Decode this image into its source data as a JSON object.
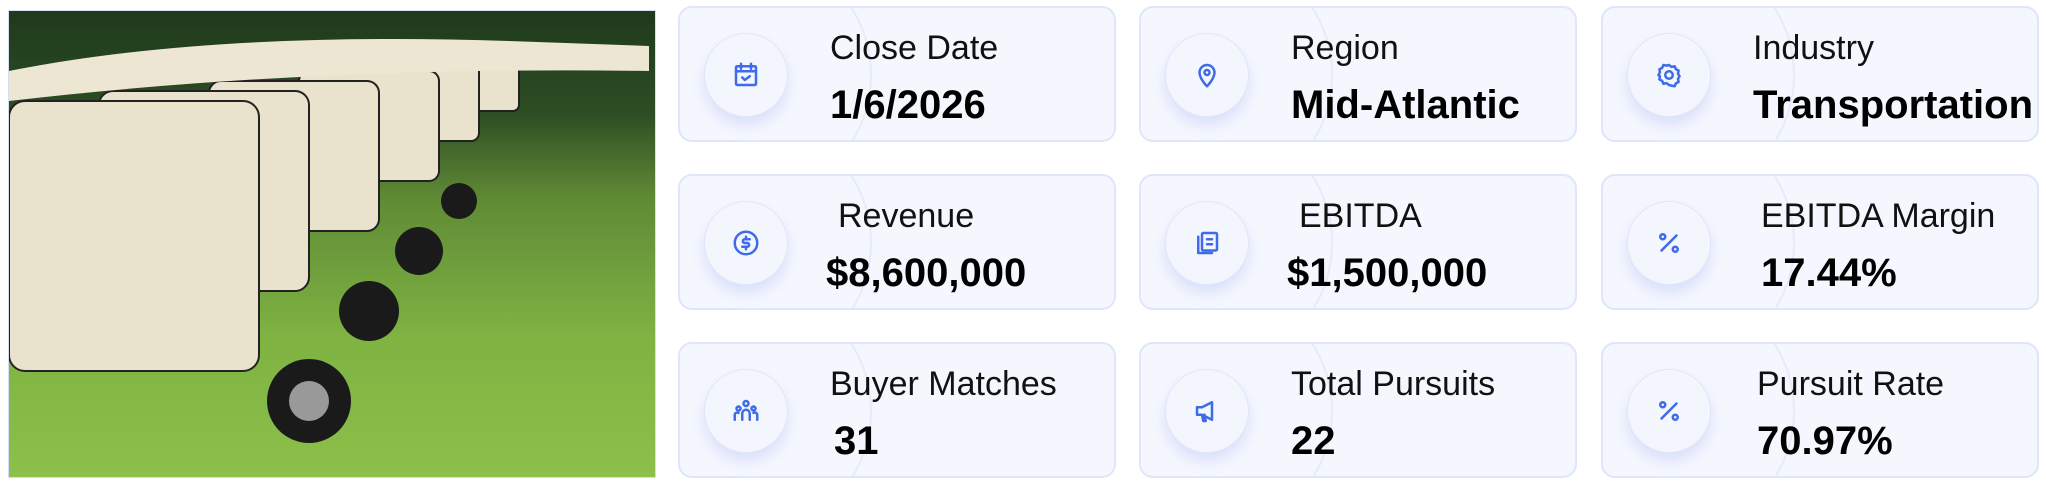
{
  "photo": {
    "alt": "golf carts"
  },
  "cards": [
    {
      "label": "Close Date",
      "value": "1/6/2026",
      "icon": "calendar-check-icon"
    },
    {
      "label": "Region",
      "value": "Mid-Atlantic",
      "icon": "map-pin-icon"
    },
    {
      "label": "Industry",
      "value": "Transportation",
      "icon": "gear-icon"
    },
    {
      "label": "Revenue",
      "value": "$8,600,000",
      "icon": "dollar-circle-icon"
    },
    {
      "label": "EBITDA",
      "value": "$1,500,000",
      "icon": "money-stack-icon"
    },
    {
      "label": "EBITDA Margin",
      "value": "17.44%",
      "icon": "percent-icon"
    },
    {
      "label": "Buyer Matches",
      "value": "31",
      "icon": "users-icon"
    },
    {
      "label": "Total Pursuits",
      "value": "22",
      "icon": "megaphone-icon"
    },
    {
      "label": "Pursuit Rate",
      "value": "70.97%",
      "icon": "percent-icon"
    }
  ],
  "colors": {
    "accent": "#3f6be8",
    "card_bg": "#f5f7fe",
    "card_border": "#dfe6fb"
  }
}
